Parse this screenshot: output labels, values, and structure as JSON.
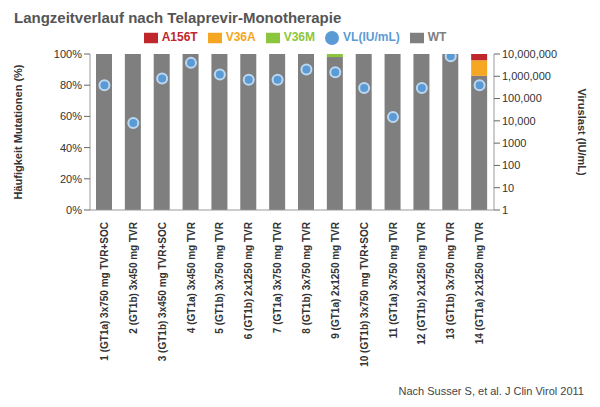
{
  "chart_data": {
    "type": "bar",
    "title": "Langzeitverlauf nach Telaprevir-Monotherapie",
    "source": "Nach Susser S, et al. J Clin Virol 2011",
    "y_label": "Häufigkeit Mutationen (%)",
    "y2_label": "Viruslast (IU/mL)",
    "categories": [
      "1 (GT1a) 3x750 mg TVR+SOC",
      "2 (GT1b) 3x450 mg TVR",
      "3 (GT1b) 3x450 mg TVR+SOC",
      "4 (GT1a) 3x450 mg TVR",
      "5 (GT1b) 3x750 mg TVR",
      "6 (GT1b) 2x1250 mg TVR",
      "7 (GT1a) 3x750 mg TVR",
      "8 (GT1b) 3x750 mg TVR",
      "9 (GT1a) 2x1250 mg TVR",
      "10 (GT1b) 3x750 mg TVR+SOC",
      "11 (GT1a) 3x750 mg TVR",
      "12 (GT1b) 2x1250 mg TVR",
      "13 (GT1b) 3x750 mg TVR",
      "14 (GT1a) 2x1250 mg TVR"
    ],
    "series": [
      {
        "name": "WT",
        "color": "#7f7f7f",
        "values": [
          100,
          100,
          100,
          100,
          100,
          100,
          100,
          100,
          98,
          100,
          100,
          100,
          100,
          86
        ]
      },
      {
        "name": "V36M",
        "color": "#8cc63e",
        "values": [
          0,
          0,
          0,
          0,
          0,
          0,
          0,
          0,
          2,
          0,
          0,
          0,
          0,
          0
        ]
      },
      {
        "name": "V36A",
        "color": "#f5a623",
        "values": [
          0,
          0,
          0,
          0,
          0,
          0,
          0,
          0,
          0,
          0,
          0,
          0,
          0,
          10
        ]
      },
      {
        "name": "A156T",
        "color": "#c0272d",
        "values": [
          0,
          0,
          0,
          0,
          0,
          0,
          0,
          0,
          0,
          0,
          0,
          0,
          0,
          4
        ]
      },
      {
        "name": "VL(IU/mL)",
        "type": "scatter",
        "axis": "y2",
        "log": true,
        "marker": "circle",
        "color": "#5b9bd5",
        "values": [
          400000,
          8000,
          800000,
          4000000,
          1200000,
          700000,
          700000,
          2000000,
          1500000,
          300000,
          15000,
          300000,
          8000000,
          400000
        ]
      }
    ],
    "stacked": true,
    "grid": false,
    "legend": "top",
    "ylim": [
      0,
      100
    ],
    "yticks": [
      {
        "value": 0,
        "label": "0%"
      },
      {
        "value": 20,
        "label": "20%"
      },
      {
        "value": 40,
        "label": "40%"
      },
      {
        "value": 60,
        "label": "60%"
      },
      {
        "value": 80,
        "label": "80%"
      },
      {
        "value": 100,
        "label": "100%"
      }
    ],
    "y2lim": [
      1,
      10000000
    ],
    "y2ticks": [
      1,
      10,
      100,
      1000,
      {
        "value": 10000,
        "label": "10,000"
      },
      {
        "value": 100000,
        "label": "100,000"
      },
      {
        "value": 1000000,
        "label": "1,000,000"
      },
      {
        "value": 10000000,
        "label": "10,000,000"
      }
    ]
  }
}
